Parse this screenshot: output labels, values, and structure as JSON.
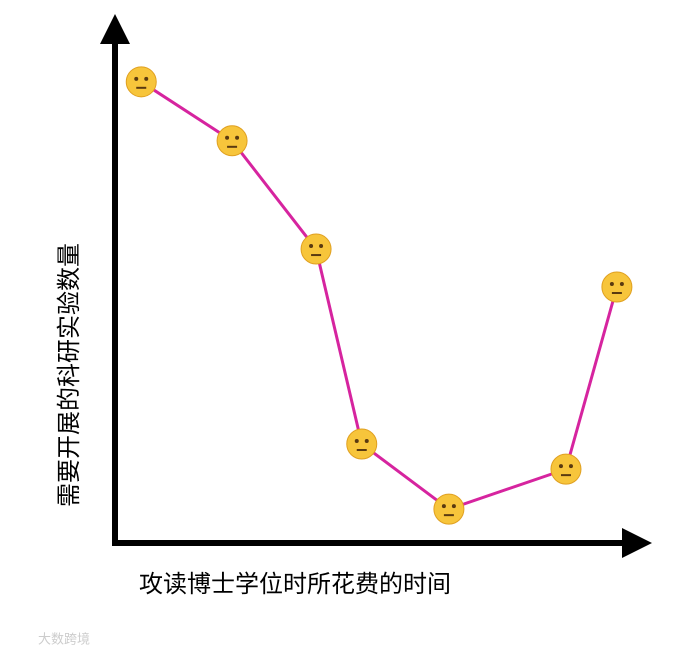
{
  "chart_data": {
    "type": "line",
    "y_label": "需要开展的科研实验数量",
    "x_label": "攻读博士学位时所花费的时间",
    "watermark": "大数跨境",
    "x": [
      5,
      22.3,
      38.3,
      47,
      63.6,
      85.9,
      95.6
    ],
    "values": [
      89.9,
      78.4,
      57.3,
      19.3,
      6.6,
      14.4,
      49.9
    ],
    "color": "#d6249f",
    "marker_color": "#f7c53b",
    "xlim": [
      0,
      100
    ],
    "ylim": [
      0,
      100
    ]
  }
}
